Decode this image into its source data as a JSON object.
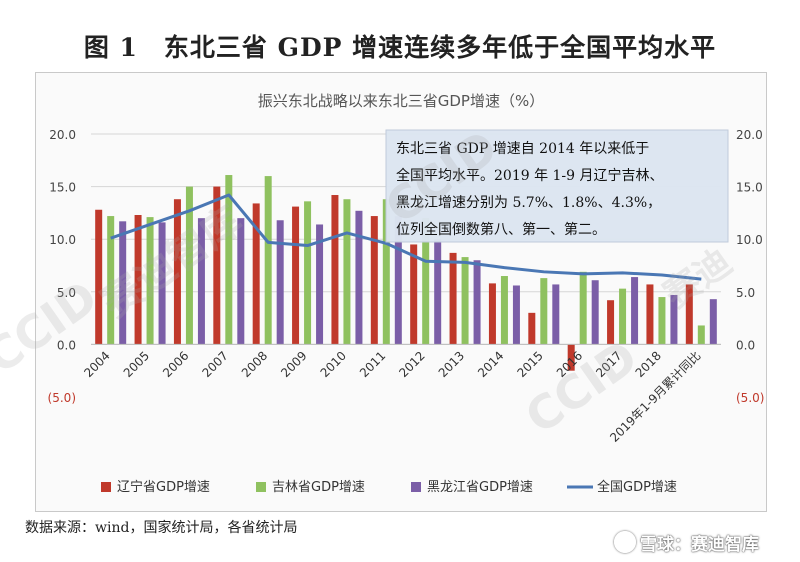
{
  "figure_title": "图 1　东北三省 GDP 增速连续多年低于全国平均水平",
  "source_text": "数据来源：wind，国家统计局，各省统计局",
  "watermark": {
    "text": "CCID 赛迪智库",
    "xueqiu_label": "雪球：赛迪智库"
  },
  "annotation": {
    "lines": [
      "东北三省 GDP 增速自 2014 年以来低于",
      "全国平均水平。2019 年 1-9 月辽宁吉林、",
      "黑龙江增速分别为 5.7%、1.8%、4.3%，",
      "位列全国倒数第八、第一、第二。"
    ]
  },
  "chart_data": {
    "type": "bar",
    "title": "振兴东北战略以来东北三省GDP增速（%）",
    "categories": [
      "2004",
      "2005",
      "2006",
      "2007",
      "2008",
      "2009",
      "2010",
      "2011",
      "2012",
      "2013",
      "2014",
      "2015",
      "2016",
      "2017",
      "2018",
      "2019年1-9月累计同比"
    ],
    "series": [
      {
        "name": "辽宁省GDP增速",
        "kind": "bar",
        "color": "#c0392b",
        "values": [
          12.8,
          12.3,
          13.8,
          15.0,
          13.4,
          13.1,
          14.2,
          12.2,
          9.5,
          8.7,
          5.8,
          3.0,
          -2.5,
          4.2,
          5.7,
          5.7
        ]
      },
      {
        "name": "吉林省GDP增速",
        "kind": "bar",
        "color": "#8fc15f",
        "values": [
          12.2,
          12.1,
          15.0,
          16.1,
          16.0,
          13.6,
          13.8,
          13.8,
          12.0,
          8.3,
          6.5,
          6.3,
          6.9,
          5.3,
          4.5,
          1.8
        ]
      },
      {
        "name": "黑龙江省GDP增速",
        "kind": "bar",
        "color": "#7b5ea7",
        "values": [
          11.7,
          11.6,
          12.0,
          12.0,
          11.8,
          11.4,
          12.7,
          12.2,
          10.0,
          8.0,
          5.6,
          5.7,
          6.1,
          6.4,
          4.7,
          4.3
        ]
      },
      {
        "name": "全国GDP增速",
        "kind": "line",
        "color": "#4a77b4",
        "values": [
          10.1,
          11.4,
          12.7,
          14.2,
          9.7,
          9.4,
          10.6,
          9.6,
          7.9,
          7.8,
          7.3,
          6.9,
          6.7,
          6.8,
          6.6,
          6.2
        ]
      }
    ],
    "y_axis": {
      "min": -5,
      "max": 20,
      "ticks": [
        "(5.0)",
        "0.0",
        "5.0",
        "10.0",
        "15.0",
        "20.0"
      ],
      "tick_values": [
        -5,
        0,
        5,
        10,
        15,
        20
      ]
    },
    "grid": true,
    "legend_position": "bottom",
    "y_axis_right": true
  }
}
